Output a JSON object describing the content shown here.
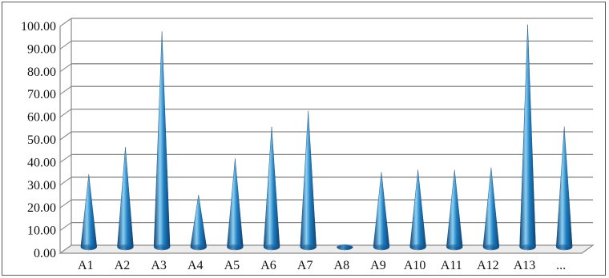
{
  "chart_data": {
    "type": "bar",
    "subtype": "3d-cone",
    "categories": [
      "A1",
      "A2",
      "A3",
      "A4",
      "A5",
      "A6",
      "A7",
      "A8",
      "A9",
      "A10",
      "A11",
      "A12",
      "A13",
      "..."
    ],
    "series": [
      {
        "values": [
          33,
          45,
          96,
          24,
          40,
          54,
          61,
          2,
          34,
          35,
          35,
          36,
          99,
          54
        ]
      }
    ],
    "ylim": [
      0,
      100
    ],
    "ytick_step": 10,
    "ytick_labels": [
      "0.00",
      "10.00",
      "20.00",
      "30.00",
      "40.00",
      "50.00",
      "60.00",
      "70.00",
      "80.00",
      "90.00",
      "100.00"
    ],
    "grid": true,
    "legend": "none",
    "title": "",
    "xlabel": "",
    "ylabel": "",
    "colors": {
      "cone": "#1f7fc0",
      "cone_dark": "#0b3f73",
      "cone_light": "#8cd0f4",
      "grid": "#8a8a8a",
      "frame": "#5a5a5a"
    }
  }
}
